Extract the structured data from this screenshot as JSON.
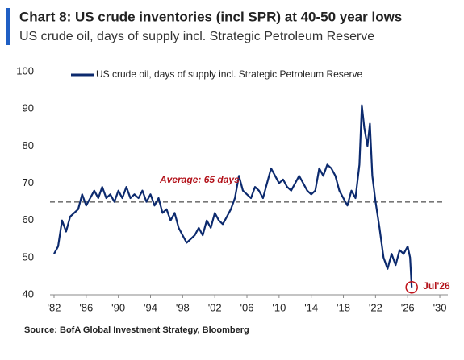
{
  "chart_data": {
    "type": "line",
    "title": "Chart 8: US crude inventories (incl SPR) at 40-50 year lows",
    "subtitle": "US crude oil, days of supply incl. Strategic Petroleum Reserve",
    "source": "Source: BofA Global Investment Strategy, Bloomberg",
    "x": [
      1982,
      1982.5,
      1983,
      1983.5,
      1984,
      1984.5,
      1985,
      1985.5,
      1986,
      1986.5,
      1987,
      1987.5,
      1988,
      1988.5,
      1989,
      1989.5,
      1990,
      1990.5,
      1991,
      1991.5,
      1992,
      1992.5,
      1993,
      1993.5,
      1994,
      1994.5,
      1995,
      1995.5,
      1996,
      1996.5,
      1997,
      1997.5,
      1998,
      1998.5,
      1999,
      1999.5,
      2000,
      2000.5,
      2001,
      2001.5,
      2002,
      2002.5,
      2003,
      2003.5,
      2004,
      2004.5,
      2005,
      2005.5,
      2006,
      2006.5,
      2007,
      2007.5,
      2008,
      2008.5,
      2009,
      2009.5,
      2010,
      2010.5,
      2011,
      2011.5,
      2012,
      2012.5,
      2013,
      2013.5,
      2014,
      2014.5,
      2015,
      2015.5,
      2016,
      2016.5,
      2017,
      2017.5,
      2018,
      2018.5,
      2019,
      2019.5,
      2020,
      2020.3,
      2020.6,
      2021,
      2021.3,
      2021.6,
      2022,
      2022.5,
      2023,
      2023.5,
      2024,
      2024.5,
      2025,
      2025.5,
      2026,
      2026.3,
      2026.5
    ],
    "series": [
      {
        "name": "US crude oil, days of supply incl. Strategic Petroleum Reserve",
        "color": "#0c2a6e",
        "values": [
          51,
          53,
          60,
          57,
          61,
          62,
          63,
          67,
          64,
          66,
          68,
          66,
          69,
          66,
          67,
          65,
          68,
          66,
          69,
          66,
          67,
          66,
          68,
          65,
          67,
          64,
          66,
          62,
          63,
          60,
          62,
          58,
          56,
          54,
          55,
          56,
          58,
          56,
          60,
          58,
          62,
          60,
          59,
          61,
          63,
          66,
          72,
          68,
          67,
          66,
          69,
          68,
          66,
          70,
          74,
          72,
          70,
          71,
          69,
          68,
          70,
          72,
          70,
          68,
          67,
          68,
          74,
          72,
          75,
          74,
          72,
          68,
          66,
          64,
          68,
          66,
          75,
          91,
          85,
          80,
          86,
          72,
          65,
          58,
          50,
          47,
          51,
          48,
          52,
          51,
          53,
          50,
          42
        ]
      }
    ],
    "average_line": 65,
    "average_label": "Average: 65 days",
    "point_label": "Jul'26",
    "xlim": [
      1981.5,
      2031
    ],
    "ylim": [
      40,
      100
    ],
    "yticks": [
      40,
      50,
      60,
      70,
      80,
      90,
      100
    ],
    "xticks": [
      {
        "value": 1982,
        "label": "'82"
      },
      {
        "value": 1986,
        "label": "'86"
      },
      {
        "value": 1990,
        "label": "'90"
      },
      {
        "value": 1994,
        "label": "'94"
      },
      {
        "value": 1998,
        "label": "'98"
      },
      {
        "value": 2002,
        "label": "'02"
      },
      {
        "value": 2006,
        "label": "'06"
      },
      {
        "value": 2010,
        "label": "'10"
      },
      {
        "value": 2014,
        "label": "'14"
      },
      {
        "value": 2018,
        "label": "'18"
      },
      {
        "value": 2022,
        "label": "'22"
      },
      {
        "value": 2026,
        "label": "'26"
      },
      {
        "value": 2030,
        "label": "'30"
      }
    ],
    "grid": false
  }
}
